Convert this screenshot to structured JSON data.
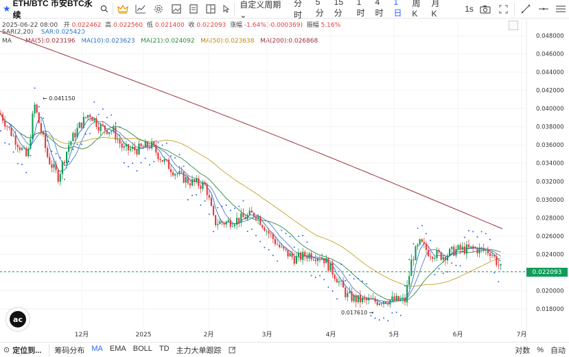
{
  "toolbar": {
    "symbol": "ETH/BTC 币安BTC永续",
    "custom_period": "自定义周期",
    "timeframes": [
      {
        "label": "分时",
        "active": false
      },
      {
        "label": "5分",
        "active": false
      },
      {
        "label": "15分",
        "active": false
      },
      {
        "label": "1时",
        "active": false
      },
      {
        "label": "4时",
        "active": false
      },
      {
        "label": "1日",
        "active": true
      },
      {
        "label": "周K",
        "active": false
      },
      {
        "label": "月K",
        "active": false
      }
    ],
    "interval_1s": "1s"
  },
  "ohlc": {
    "date": "2025-06-22 08:00",
    "open_label": "开",
    "open": "0.022462",
    "high_label": "高",
    "high": "0.022560",
    "low_label": "低",
    "low": "0.021400",
    "close_label": "收",
    "close": "0.022093",
    "change_label": "涨幅",
    "change": "-1.64%(-0.000369)",
    "amp_label": "振幅",
    "amp": "5.16%"
  },
  "sar": {
    "label": "SAR(2,20)",
    "value": "SAR:0.025420"
  },
  "ma": {
    "label": "MA",
    "ma5": "MA(5):0.023196",
    "ma10": "MA(10):0.023623",
    "ma21": "MA(21):0.024092",
    "ma50": "MA(50):0.023638",
    "ma200": "MA(200):0.026868"
  },
  "colors": {
    "up": "#0f9d58",
    "down": "#e23d3d",
    "ma5": "#2d6fc7",
    "ma10": "#1f77b4",
    "ma21": "#2b8a3e",
    "ma50": "#c8a93a",
    "ma200": "#9c2f3c",
    "sar": "#2962ff"
  },
  "chart_data": {
    "type": "candlestick",
    "y_ticks": [
      "0.048000",
      "0.046000",
      "0.044000",
      "0.042000",
      "0.040000",
      "0.038000",
      "0.036000",
      "0.034000",
      "0.032000",
      "0.030000",
      "0.028000",
      "0.026000",
      "0.024000",
      "0.022000",
      "0.020000",
      "0.018000"
    ],
    "x_ticks": [
      "12月",
      "2025",
      "2月",
      "3月",
      "4月",
      "5月",
      "6月",
      "7月"
    ],
    "last_price": "0.022093",
    "annotations": {
      "high": "0.041150",
      "low": "0.017610"
    }
  },
  "bottom": {
    "locate": "定位到...",
    "tabs": [
      {
        "label": "筹码分布",
        "active": false
      },
      {
        "label": "MA",
        "active": true
      },
      {
        "label": "EMA",
        "active": false
      },
      {
        "label": "BOLL",
        "active": false
      },
      {
        "label": "TD",
        "active": false
      },
      {
        "label": "主力大单跟踪",
        "active": false
      }
    ],
    "log": "对数",
    "pct": "%",
    "auto": "自动"
  }
}
